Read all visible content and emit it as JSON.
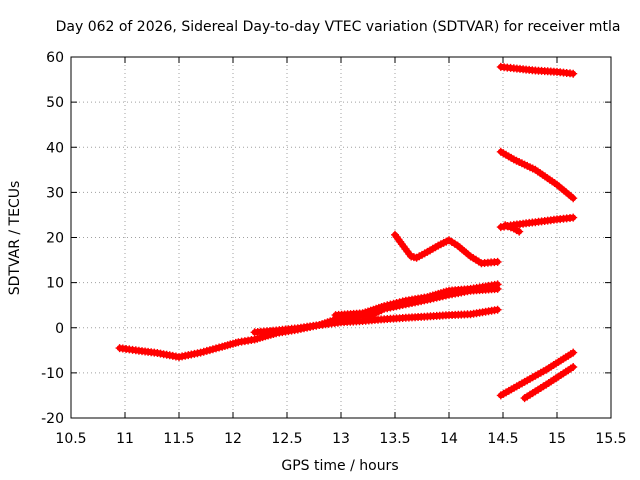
{
  "chart_data": {
    "type": "scatter",
    "title": "Day 062 of 2026, Sidereal Day-to-day VTEC variation (SDTVAR) for receiver mtla",
    "xlabel": "GPS time / hours",
    "ylabel": "SDTVAR / TECUs",
    "xlim": [
      10.5,
      15.5
    ],
    "ylim": [
      -20,
      60
    ],
    "xticks": [
      10.5,
      11,
      11.5,
      12,
      12.5,
      13,
      13.5,
      14,
      14.5,
      15,
      15.5
    ],
    "xtick_labels": [
      "10.5",
      "11",
      "11.5",
      "12",
      "12.5",
      "13",
      "13.5",
      "14",
      "14.5",
      "15",
      "15.5"
    ],
    "yticks": [
      -20,
      -10,
      0,
      10,
      20,
      30,
      40,
      50,
      60
    ],
    "ytick_labels": [
      "-20",
      "-10",
      "0",
      "10",
      "20",
      "30",
      "40",
      "50",
      "60"
    ],
    "grid": true,
    "marker": "+",
    "color": "#ff0000",
    "series": [
      {
        "name": "arc-1",
        "points": [
          [
            10.95,
            -4.5
          ],
          [
            11.1,
            -5.0
          ],
          [
            11.3,
            -5.6
          ],
          [
            11.5,
            -6.5
          ],
          [
            11.7,
            -5.5
          ],
          [
            11.9,
            -4.2
          ],
          [
            12.05,
            -3.2
          ],
          [
            12.2,
            -2.6
          ],
          [
            12.4,
            -1.2
          ],
          [
            12.6,
            -0.4
          ],
          [
            12.8,
            0.6
          ],
          [
            13.0,
            1.2
          ],
          [
            13.2,
            1.5
          ],
          [
            13.4,
            1.9
          ],
          [
            13.6,
            2.2
          ],
          [
            13.8,
            2.5
          ],
          [
            14.0,
            2.8
          ],
          [
            14.2,
            3.0
          ],
          [
            14.45,
            4.0
          ]
        ]
      },
      {
        "name": "arc-2",
        "points": [
          [
            12.2,
            -1.0
          ],
          [
            12.4,
            -0.6
          ],
          [
            12.6,
            -0.1
          ],
          [
            12.8,
            0.6
          ],
          [
            12.95,
            1.8
          ],
          [
            13.1,
            2.6
          ],
          [
            13.3,
            3.0
          ],
          [
            13.4,
            4.2
          ],
          [
            13.6,
            5.2
          ],
          [
            13.8,
            6.2
          ],
          [
            14.0,
            7.3
          ],
          [
            14.2,
            8.2
          ],
          [
            14.45,
            8.6
          ]
        ]
      },
      {
        "name": "arc-3",
        "points": [
          [
            12.95,
            2.8
          ],
          [
            13.2,
            3.2
          ],
          [
            13.4,
            4.8
          ],
          [
            13.6,
            6.0
          ],
          [
            13.8,
            6.8
          ],
          [
            14.0,
            8.2
          ],
          [
            14.2,
            8.6
          ],
          [
            14.45,
            9.6
          ]
        ]
      },
      {
        "name": "arc-4",
        "points": [
          [
            13.5,
            20.6
          ],
          [
            13.58,
            18.0
          ],
          [
            13.65,
            15.8
          ],
          [
            13.7,
            15.5
          ],
          [
            13.8,
            16.8
          ],
          [
            13.9,
            18.2
          ],
          [
            14.0,
            19.4
          ],
          [
            14.08,
            18.2
          ],
          [
            14.2,
            15.8
          ],
          [
            14.3,
            14.3
          ],
          [
            14.45,
            14.6
          ]
        ]
      },
      {
        "name": "arc-5",
        "points": [
          [
            14.48,
            57.8
          ],
          [
            14.6,
            57.5
          ],
          [
            14.8,
            57.0
          ],
          [
            15.0,
            56.7
          ],
          [
            15.15,
            56.3
          ]
        ]
      },
      {
        "name": "arc-6",
        "points": [
          [
            14.48,
            39.0
          ],
          [
            14.6,
            37.3
          ],
          [
            14.8,
            35.0
          ],
          [
            15.0,
            31.7
          ],
          [
            15.15,
            28.7
          ]
        ]
      },
      {
        "name": "arc-7",
        "points": [
          [
            14.48,
            22.3
          ],
          [
            14.6,
            22.8
          ],
          [
            14.8,
            23.4
          ],
          [
            15.0,
            24.0
          ],
          [
            15.15,
            24.4
          ]
        ]
      },
      {
        "name": "arc-8",
        "points": [
          [
            14.52,
            22.7
          ],
          [
            14.6,
            22.0
          ],
          [
            14.65,
            21.3
          ]
        ]
      },
      {
        "name": "arc-9",
        "points": [
          [
            14.48,
            -15.0
          ],
          [
            14.7,
            -12.0
          ],
          [
            14.9,
            -9.3
          ],
          [
            15.15,
            -5.5
          ]
        ]
      },
      {
        "name": "arc-10",
        "points": [
          [
            14.7,
            -15.6
          ],
          [
            14.9,
            -12.6
          ],
          [
            15.15,
            -8.7
          ]
        ]
      }
    ]
  }
}
